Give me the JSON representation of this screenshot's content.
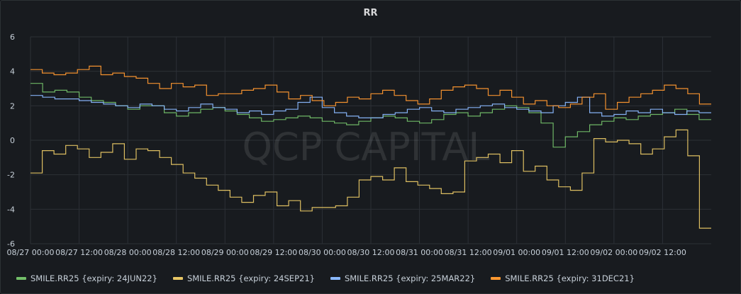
{
  "chart_data": {
    "type": "line",
    "title": "RR",
    "watermark": "QCP CAPITAL",
    "x_start": "08/27 00:00",
    "x_end": "09/02 23:00",
    "x_tick_labels": [
      "08/27 00:00",
      "08/27 12:00",
      "08/28 00:00",
      "08/28 12:00",
      "08/29 00:00",
      "08/29 12:00",
      "08/30 00:00",
      "08/30 12:00",
      "08/31 00:00",
      "08/31 12:00",
      "09/01 00:00",
      "09/01 12:00",
      "09/02 00:00",
      "09/02 12:00"
    ],
    "y_ticks": [
      -6,
      -4,
      -2,
      0,
      2,
      4,
      6
    ],
    "ylim": [
      -6,
      6
    ],
    "grid": true,
    "legend_position": "bottom-left",
    "x_step_hours": 3,
    "series": [
      {
        "name": "SMILE.RR25 {expiry: 24JUN22}",
        "color": "#73bf69",
        "values": [
          3.3,
          2.8,
          2.9,
          2.8,
          2.5,
          2.3,
          2.2,
          2.0,
          1.8,
          2.0,
          2.0,
          1.6,
          1.4,
          1.6,
          1.8,
          1.9,
          1.7,
          1.5,
          1.3,
          1.1,
          1.2,
          1.3,
          1.4,
          1.3,
          1.1,
          1.0,
          0.9,
          1.1,
          1.3,
          1.4,
          1.3,
          1.1,
          1.0,
          1.2,
          1.5,
          1.6,
          1.4,
          1.6,
          1.8,
          2.0,
          1.9,
          1.6,
          1.0,
          -0.4,
          0.2,
          0.5,
          0.9,
          1.1,
          1.3,
          1.2,
          1.4,
          1.5,
          1.6,
          1.8,
          1.5,
          1.2
        ]
      },
      {
        "name": "SMILE.RR25 {expiry: 24SEP21}",
        "color": "#e8c765",
        "values": [
          -1.9,
          -0.6,
          -0.8,
          -0.3,
          -0.5,
          -1.0,
          -0.7,
          -0.2,
          -1.1,
          -0.5,
          -0.6,
          -1.0,
          -1.4,
          -1.9,
          -2.2,
          -2.6,
          -2.9,
          -3.3,
          -3.6,
          -3.2,
          -3.0,
          -3.8,
          -3.5,
          -4.1,
          -3.9,
          -3.9,
          -3.8,
          -3.3,
          -2.3,
          -2.1,
          -2.3,
          -1.6,
          -2.4,
          -2.6,
          -2.8,
          -3.1,
          -3.0,
          -1.2,
          -1.0,
          -0.8,
          -1.3,
          -0.6,
          -1.8,
          -1.5,
          -2.3,
          -2.7,
          -2.9,
          -1.9,
          0.1,
          -0.1,
          0.0,
          -0.2,
          -0.8,
          -0.5,
          0.2,
          0.6,
          -0.9,
          -5.1
        ]
      },
      {
        "name": "SMILE.RR25 {expiry: 25MAR22}",
        "color": "#8ab8ff",
        "values": [
          2.6,
          2.5,
          2.4,
          2.4,
          2.3,
          2.2,
          2.1,
          2.0,
          1.9,
          2.1,
          2.0,
          1.8,
          1.7,
          1.9,
          2.1,
          1.9,
          1.8,
          1.6,
          1.7,
          1.5,
          1.7,
          1.8,
          2.2,
          2.5,
          1.9,
          1.6,
          1.4,
          1.3,
          1.3,
          1.5,
          1.6,
          1.8,
          1.9,
          1.7,
          1.6,
          1.8,
          1.9,
          2.0,
          2.1,
          1.9,
          1.8,
          1.7,
          1.6,
          2.0,
          2.2,
          2.5,
          1.6,
          1.4,
          1.5,
          1.7,
          1.6,
          1.8,
          1.6,
          1.5,
          1.7,
          1.6
        ]
      },
      {
        "name": "SMILE.RR25 {expiry: 31DEC21}",
        "color": "#ff9830",
        "values": [
          4.1,
          3.9,
          3.8,
          3.9,
          4.1,
          4.3,
          3.8,
          3.9,
          3.7,
          3.6,
          3.3,
          3.0,
          3.3,
          3.1,
          3.2,
          2.6,
          2.7,
          2.7,
          2.9,
          3.0,
          3.2,
          2.8,
          2.4,
          2.6,
          2.3,
          2.0,
          2.2,
          2.5,
          2.4,
          2.7,
          2.9,
          2.6,
          2.3,
          2.1,
          2.4,
          2.9,
          3.1,
          3.2,
          3.0,
          2.6,
          2.9,
          2.5,
          2.1,
          2.3,
          2.0,
          1.9,
          2.1,
          2.5,
          2.7,
          1.8,
          2.2,
          2.5,
          2.7,
          2.9,
          3.2,
          3.0,
          2.7,
          2.1
        ]
      }
    ]
  },
  "legend": [
    {
      "label": "SMILE.RR25 {expiry: 24JUN22}",
      "color": "#73bf69"
    },
    {
      "label": "SMILE.RR25 {expiry: 24SEP21}",
      "color": "#e8c765"
    },
    {
      "label": "SMILE.RR25 {expiry: 25MAR22}",
      "color": "#8ab8ff"
    },
    {
      "label": "SMILE.RR25 {expiry: 31DEC21}",
      "color": "#ff9830"
    }
  ]
}
